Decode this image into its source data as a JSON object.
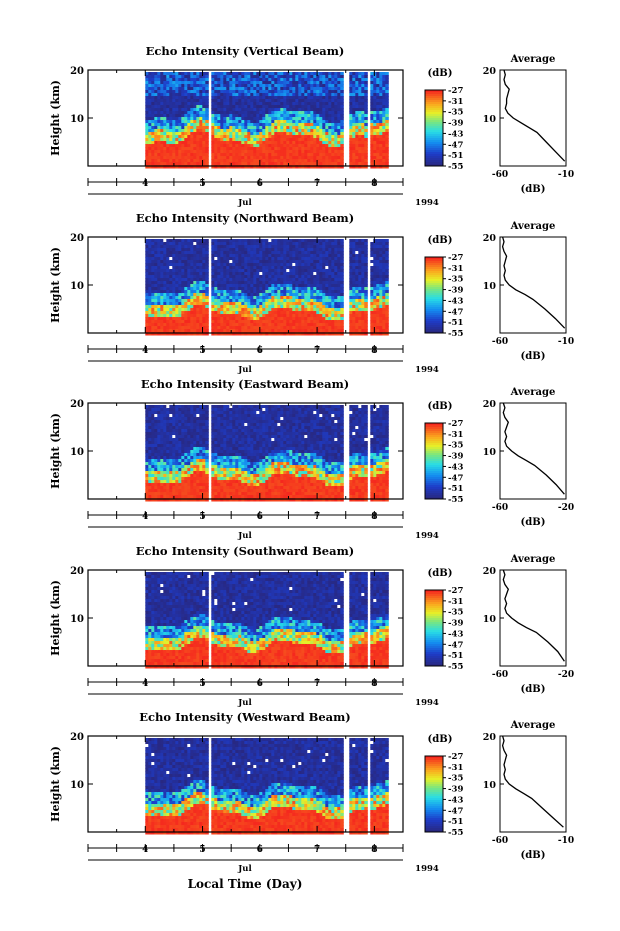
{
  "chart_data": [
    {
      "type": "heatmap",
      "title": "Echo Intensity (Vertical Beam)",
      "ylabel": "Height (km)",
      "y_ticks": [
        "20",
        "10"
      ],
      "ylim": [
        0,
        20
      ],
      "x_ticks": [
        "4",
        "5",
        "6",
        "7",
        "8"
      ],
      "month_label": "Jul",
      "year_label": "1994",
      "colorbar": {
        "unit": "(dB)",
        "ticks": [
          "-27",
          "-31",
          "-35",
          "-39",
          "-43",
          "-47",
          "-51",
          "-55"
        ],
        "range": [
          -55,
          -27
        ]
      },
      "data_gaps_day": [
        [
          5.05,
          5.1
        ],
        [
          7.45,
          7.55
        ],
        [
          7.85,
          7.9
        ]
      ],
      "boundary_km": 7.5,
      "profile": {
        "title": "Average",
        "xlabel": "(dB)",
        "x_ticks": [
          "-60",
          "-10"
        ],
        "y_ticks": [
          "20",
          "10"
        ],
        "xlim": [
          -60,
          -10
        ],
        "heights_km": [
          1,
          3,
          5,
          7,
          8,
          9,
          10,
          11,
          12,
          13,
          14,
          15,
          16,
          17,
          18,
          19,
          20
        ],
        "values_db": [
          -11,
          -18,
          -25,
          -32,
          -38,
          -44,
          -50,
          -54,
          -56,
          -55,
          -55,
          -54,
          -53,
          -56,
          -57,
          -56,
          -57
        ]
      }
    },
    {
      "type": "heatmap",
      "title": "Echo Intensity (Northward Beam)",
      "ylabel": "Height (km)",
      "y_ticks": [
        "20",
        "10"
      ],
      "ylim": [
        0,
        20
      ],
      "x_ticks": [
        "4",
        "5",
        "6",
        "7",
        "8"
      ],
      "month_label": "Jul",
      "year_label": "1994",
      "colorbar": {
        "unit": "(dB)",
        "ticks": [
          "-27",
          "-31",
          "-35",
          "-39",
          "-43",
          "-47",
          "-51",
          "-55"
        ],
        "range": [
          -55,
          -27
        ]
      },
      "data_gaps_day": [
        [
          5.05,
          5.1
        ],
        [
          7.45,
          7.55
        ],
        [
          7.85,
          7.9
        ]
      ],
      "boundary_km": 6.0,
      "profile": {
        "title": "Average",
        "xlabel": "(dB)",
        "x_ticks": [
          "-60",
          "-10"
        ],
        "y_ticks": [
          "20",
          "10"
        ],
        "xlim": [
          -60,
          -10
        ],
        "heights_km": [
          1,
          3,
          5,
          7,
          8,
          9,
          10,
          11,
          12,
          13,
          14,
          15,
          16,
          17,
          18,
          19,
          20
        ],
        "values_db": [
          -11,
          -18,
          -26,
          -35,
          -41,
          -48,
          -53,
          -56,
          -57,
          -56,
          -57,
          -56,
          -55,
          -57,
          -58,
          -57,
          -58
        ]
      }
    },
    {
      "type": "heatmap",
      "title": "Echo Intensity (Eastward Beam)",
      "ylabel": "Height (km)",
      "y_ticks": [
        "20",
        "10"
      ],
      "ylim": [
        0,
        20
      ],
      "x_ticks": [
        "4",
        "5",
        "6",
        "7",
        "8"
      ],
      "month_label": "Jul",
      "year_label": "1994",
      "colorbar": {
        "unit": "(dB)",
        "ticks": [
          "-27",
          "-31",
          "-35",
          "-39",
          "-43",
          "-47",
          "-51",
          "-55"
        ],
        "range": [
          -55,
          -27
        ]
      },
      "data_gaps_day": [
        [
          5.05,
          5.1
        ],
        [
          7.45,
          7.55
        ],
        [
          7.85,
          7.9
        ]
      ],
      "boundary_km": 6.0,
      "profile": {
        "title": "Average",
        "xlabel": "(dB)",
        "x_ticks": [
          "-60",
          "-20"
        ],
        "y_ticks": [
          "20",
          "10"
        ],
        "xlim": [
          -60,
          -20
        ],
        "heights_km": [
          1,
          3,
          5,
          7,
          8,
          9,
          10,
          11,
          12,
          13,
          14,
          15,
          16,
          17,
          18,
          19,
          20
        ],
        "values_db": [
          -21,
          -26,
          -32,
          -39,
          -44,
          -49,
          -53,
          -56,
          -57,
          -56,
          -57,
          -56,
          -55,
          -57,
          -58,
          -57,
          -58
        ]
      }
    },
    {
      "type": "heatmap",
      "title": "Echo Intensity (Southward Beam)",
      "ylabel": "Height (km)",
      "y_ticks": [
        "20",
        "10"
      ],
      "ylim": [
        0,
        20
      ],
      "x_ticks": [
        "4",
        "5",
        "6",
        "7",
        "8"
      ],
      "month_label": "Jul",
      "year_label": "1994",
      "colorbar": {
        "unit": "(dB)",
        "ticks": [
          "-27",
          "-31",
          "-35",
          "-39",
          "-43",
          "-47",
          "-51",
          "-55"
        ],
        "range": [
          -55,
          -27
        ]
      },
      "data_gaps_day": [
        [
          5.05,
          5.1
        ],
        [
          7.45,
          7.55
        ],
        [
          7.85,
          7.9
        ]
      ],
      "boundary_km": 6.0,
      "profile": {
        "title": "Average",
        "xlabel": "(dB)",
        "x_ticks": [
          "-60",
          "-20"
        ],
        "y_ticks": [
          "20",
          "10"
        ],
        "xlim": [
          -60,
          -20
        ],
        "heights_km": [
          1,
          3,
          5,
          7,
          8,
          9,
          10,
          11,
          12,
          13,
          14,
          15,
          16,
          17,
          18,
          19,
          20
        ],
        "values_db": [
          -21,
          -25,
          -31,
          -38,
          -44,
          -49,
          -53,
          -56,
          -57,
          -56,
          -57,
          -56,
          -55,
          -57,
          -58,
          -57,
          -58
        ]
      }
    },
    {
      "type": "heatmap",
      "title": "Echo Intensity (Westward Beam)",
      "ylabel": "Height (km)",
      "y_ticks": [
        "20",
        "10"
      ],
      "ylim": [
        0,
        20
      ],
      "x_ticks": [
        "4",
        "5",
        "6",
        "7",
        "8"
      ],
      "month_label": "Jul",
      "year_label": "1994",
      "xlabel": "Local Time (Day)",
      "colorbar": {
        "unit": "(dB)",
        "ticks": [
          "-27",
          "-31",
          "-35",
          "-39",
          "-43",
          "-47",
          "-51",
          "-55"
        ],
        "range": [
          -55,
          -27
        ]
      },
      "data_gaps_day": [
        [
          5.05,
          5.1
        ],
        [
          7.45,
          7.55
        ],
        [
          7.85,
          7.9
        ]
      ],
      "boundary_km": 6.0,
      "profile": {
        "title": "Average",
        "xlabel": "(dB)",
        "x_ticks": [
          "-60",
          "-10"
        ],
        "y_ticks": [
          "20",
          "10"
        ],
        "xlim": [
          -60,
          -10
        ],
        "heights_km": [
          1,
          3,
          5,
          7,
          8,
          9,
          10,
          11,
          12,
          13,
          14,
          15,
          16,
          17,
          18,
          19,
          20
        ],
        "values_db": [
          -12,
          -20,
          -28,
          -36,
          -42,
          -48,
          -53,
          -56,
          -57,
          -56,
          -57,
          -56,
          -55,
          -57,
          -58,
          -57,
          -58
        ]
      }
    }
  ]
}
